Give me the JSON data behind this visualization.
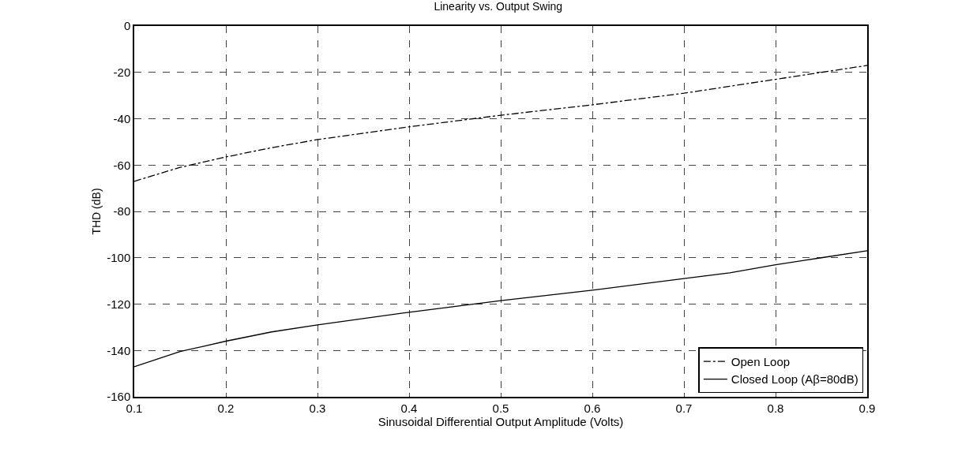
{
  "chart_data": {
    "type": "line",
    "title": "Linearity vs. Output Swing",
    "xlabel": "Sinusoidal Differential Output Amplitude (Volts)",
    "ylabel": "THD (dB)",
    "x": [
      0.1,
      0.15,
      0.2,
      0.25,
      0.3,
      0.4,
      0.5,
      0.6,
      0.7,
      0.75,
      0.8,
      0.85,
      0.9
    ],
    "series": [
      {
        "name": "Open Loop",
        "color": "#000000",
        "line_style": "dashed",
        "values": [
          -67,
          -61,
          -56.5,
          -52.5,
          -49,
          -43.5,
          -38.5,
          -34,
          -29,
          -26,
          -23,
          -20,
          -17
        ]
      },
      {
        "name": "Closed Loop (Aβ=80dB)",
        "color": "#000000",
        "line_style": "solid",
        "values": [
          -147,
          -140.5,
          -136,
          -132,
          -129,
          -123.5,
          -118.5,
          -114,
          -109,
          -106.5,
          -103,
          -100,
          -97
        ]
      }
    ],
    "xlim": [
      0.1,
      0.9
    ],
    "xticks": [
      0.1,
      0.2,
      0.3,
      0.4,
      0.5,
      0.6,
      0.7,
      0.8,
      0.9
    ],
    "ylim": [
      -160,
      0
    ],
    "yticks": [
      -160,
      -140,
      -120,
      -100,
      -80,
      -60,
      -40,
      -20,
      0
    ],
    "grid": true,
    "legend": "bottom right",
    "marker": "none"
  }
}
